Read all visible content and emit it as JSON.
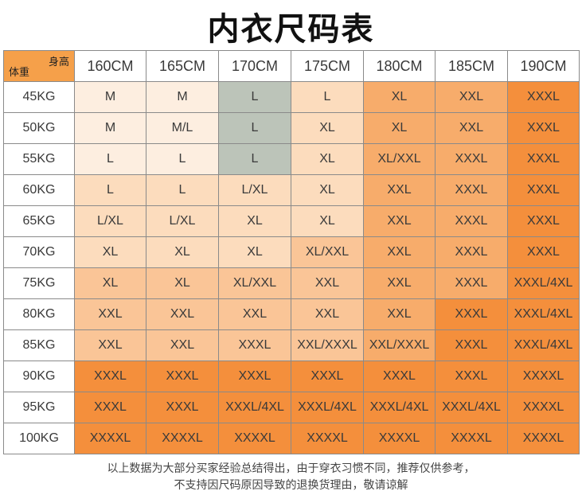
{
  "title": "内衣尺码表",
  "corner": {
    "height_label": "身高",
    "weight_label": "体重"
  },
  "heights": [
    "160CM",
    "165CM",
    "170CM",
    "175CM",
    "180CM",
    "185CM",
    "190CM"
  ],
  "rows": [
    {
      "weight": "45KG",
      "sizes": [
        "M",
        "M",
        "L",
        "L",
        "XL",
        "XXL",
        "XXXL"
      ]
    },
    {
      "weight": "50KG",
      "sizes": [
        "M",
        "M/L",
        "L",
        "XL",
        "XL",
        "XXL",
        "XXXL"
      ]
    },
    {
      "weight": "55KG",
      "sizes": [
        "L",
        "L",
        "L",
        "XL",
        "XL/XXL",
        "XXXL",
        "XXXL"
      ]
    },
    {
      "weight": "60KG",
      "sizes": [
        "L",
        "L",
        "L/XL",
        "XL",
        "XXL",
        "XXXL",
        "XXXL"
      ]
    },
    {
      "weight": "65KG",
      "sizes": [
        "L/XL",
        "L/XL",
        "XL",
        "XL",
        "XXL",
        "XXXL",
        "XXXL"
      ]
    },
    {
      "weight": "70KG",
      "sizes": [
        "XL",
        "XL",
        "XL",
        "XL/XXL",
        "XXL",
        "XXXL",
        "XXXL"
      ]
    },
    {
      "weight": "75KG",
      "sizes": [
        "XL",
        "XL",
        "XL/XXL",
        "XXL",
        "XXL",
        "XXXL",
        "XXXL/4XL"
      ]
    },
    {
      "weight": "80KG",
      "sizes": [
        "XXL",
        "XXL",
        "XXL",
        "XXL",
        "XXL",
        "XXXL",
        "XXXL/4XL"
      ]
    },
    {
      "weight": "85KG",
      "sizes": [
        "XXL",
        "XXL",
        "XXXL",
        "XXL/XXXL",
        "XXL/XXXL",
        "XXXL",
        "XXXL/4XL"
      ]
    },
    {
      "weight": "90KG",
      "sizes": [
        "XXXL",
        "XXXL",
        "XXXL",
        "XXXL",
        "XXXL",
        "XXXL",
        "XXXXL"
      ]
    },
    {
      "weight": "95KG",
      "sizes": [
        "XXXL",
        "XXXL",
        "XXXL/4XL",
        "XXXL/4XL",
        "XXXL/4XL",
        "XXXL/4XL",
        "XXXXL"
      ]
    },
    {
      "weight": "100KG",
      "sizes": [
        "XXXXL",
        "XXXXL",
        "XXXXL",
        "XXXXL",
        "XXXXL",
        "XXXXL",
        "XXXXL"
      ]
    }
  ],
  "cell_shades": [
    [
      "c0",
      "c0",
      "cg",
      "c1",
      "c3",
      "c3",
      "c4"
    ],
    [
      "c0",
      "c0",
      "cg",
      "c1",
      "c3",
      "c3",
      "c4"
    ],
    [
      "c0",
      "c0",
      "cg",
      "c1",
      "c3",
      "c3",
      "c4"
    ],
    [
      "c1",
      "c1",
      "c1",
      "c1",
      "c3",
      "c3",
      "c4"
    ],
    [
      "c1",
      "c1",
      "c1",
      "c1",
      "c3",
      "c3",
      "c4"
    ],
    [
      "c1",
      "c1",
      "c1",
      "c2",
      "c3",
      "c3",
      "c4"
    ],
    [
      "c2",
      "c2",
      "c2",
      "c2",
      "c3",
      "c3",
      "c4"
    ],
    [
      "c2",
      "c2",
      "c2",
      "c2",
      "c3",
      "c4",
      "c4"
    ],
    [
      "c2",
      "c2",
      "c2",
      "c2",
      "c3",
      "c4",
      "c4"
    ],
    [
      "c4",
      "c4",
      "c4",
      "c4",
      "c4",
      "c4",
      "c4"
    ],
    [
      "c4",
      "c4",
      "c4",
      "c4",
      "c4",
      "c4",
      "c4"
    ],
    [
      "c4",
      "c4",
      "c4",
      "c4",
      "c4",
      "c4",
      "c4"
    ]
  ],
  "colors": {
    "header_corner": "#f5a04a",
    "lightest": "#fdeee0",
    "light": "#fcdcbd",
    "medium": "#fac597",
    "deep": "#f7ac6b",
    "darkest": "#f48f3c",
    "gray_green": "#bcc4b9"
  },
  "notes": [
    "以上数据为大部分买家经验总结得出，由于穿衣习惯不同，推荐仅供参考，",
    "不支持因尺码原因导致的退换货理由，敬请谅解"
  ]
}
